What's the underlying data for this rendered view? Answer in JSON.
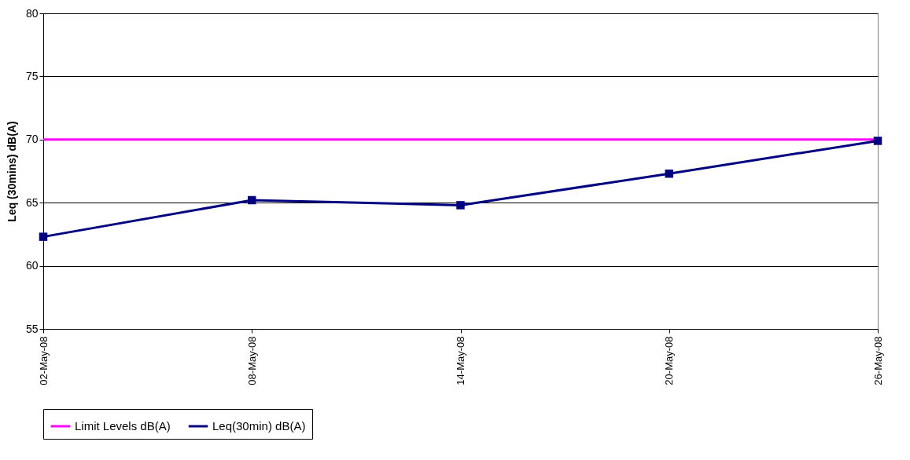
{
  "chart_data": {
    "type": "line",
    "ylabel": "Leq (30mins) dB(A)",
    "categories": [
      "02-May-08",
      "08-May-08",
      "14-May-08",
      "20-May-08",
      "26-May-08"
    ],
    "series": [
      {
        "name": "Limit Levels dB(A)",
        "color": "#ff00ff",
        "marker": "none",
        "values": [
          70,
          70,
          70,
          70,
          70
        ]
      },
      {
        "name": "Leq(30min) dB(A)",
        "color": "#000080",
        "marker": "square",
        "values": [
          62.3,
          65.2,
          64.8,
          67.3,
          69.9
        ]
      }
    ],
    "ylim": [
      55,
      80
    ],
    "yticks": [
      55,
      60,
      65,
      70,
      75,
      80
    ],
    "grid": "y",
    "legend": "bottom"
  }
}
